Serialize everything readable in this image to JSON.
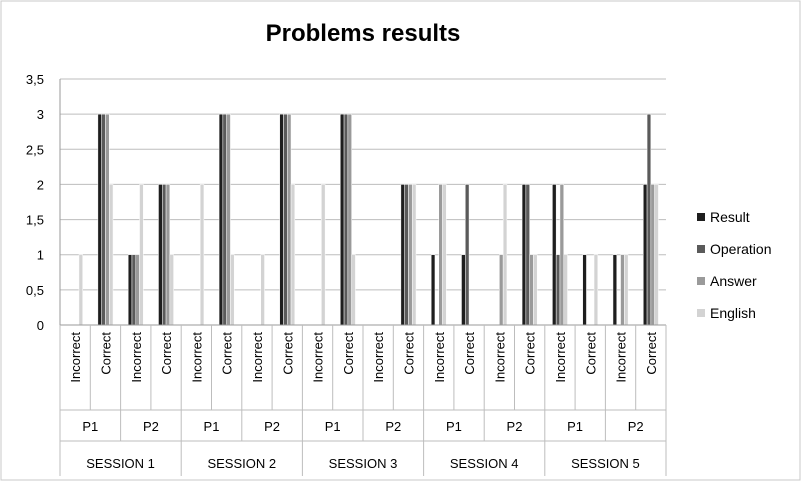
{
  "chart_data": {
    "type": "bar",
    "title": "Problems results",
    "xlabel": "",
    "ylabel": "",
    "ylim": [
      0,
      3.5
    ],
    "y_ticks": [
      "0",
      "0,5",
      "1",
      "1,5",
      "2",
      "2,5",
      "3",
      "3,5"
    ],
    "grid": true,
    "legend_position": "right",
    "categories": [
      "SESSION 1 | P1 | Incorrect",
      "SESSION 1 | P1 | Correct",
      "SESSION 1 | P2 | Incorrect",
      "SESSION 1 | P2 | Correct",
      "SESSION 2 | P1 | Incorrect",
      "SESSION 2 | P1 | Correct",
      "SESSION 2 | P2 | Incorrect",
      "SESSION 2 | P2 | Correct",
      "SESSION 3 | P1 | Incorrect",
      "SESSION 3 | P1 | Correct",
      "SESSION 3 | P2 | Incorrect",
      "SESSION 3 | P2 | Correct",
      "SESSION 4 | P1 | Incorrect",
      "SESSION 4 | P1 | Correct",
      "SESSION 4 | P2 | Incorrect",
      "SESSION 4 | P2 | Correct",
      "SESSION 5 | P1 | Incorrect",
      "SESSION 5 | P1 | Correct",
      "SESSION 5 | P2 | Incorrect",
      "SESSION 5 | P2 | Correct"
    ],
    "sessions": [
      "SESSION 1",
      "SESSION 2",
      "SESSION 3",
      "SESSION 4",
      "SESSION 5"
    ],
    "problems": [
      "P1",
      "P2"
    ],
    "outcomes": [
      "Incorrect",
      "Correct"
    ],
    "series": [
      {
        "name": "Result",
        "color": "#1e1e1e",
        "values": [
          0,
          3,
          1,
          2,
          0,
          3,
          0,
          3,
          0,
          3,
          0,
          2,
          1,
          1,
          0,
          2,
          2,
          1,
          1,
          2
        ]
      },
      {
        "name": "Operation",
        "color": "#5a5a5a",
        "values": [
          0,
          3,
          1,
          2,
          0,
          3,
          0,
          3,
          0,
          3,
          0,
          2,
          0,
          2,
          0,
          2,
          1,
          0,
          0,
          3
        ]
      },
      {
        "name": "Answer",
        "color": "#9a9a9a",
        "values": [
          0,
          3,
          1,
          2,
          0,
          3,
          0,
          3,
          0,
          3,
          0,
          2,
          2,
          0,
          1,
          1,
          2,
          0,
          1,
          2
        ]
      },
      {
        "name": "English",
        "color": "#d3d3d3",
        "values": [
          1,
          2,
          2,
          1,
          2,
          1,
          1,
          2,
          2,
          1,
          0,
          2,
          2,
          0,
          2,
          1,
          1,
          1,
          1,
          2
        ]
      }
    ]
  }
}
